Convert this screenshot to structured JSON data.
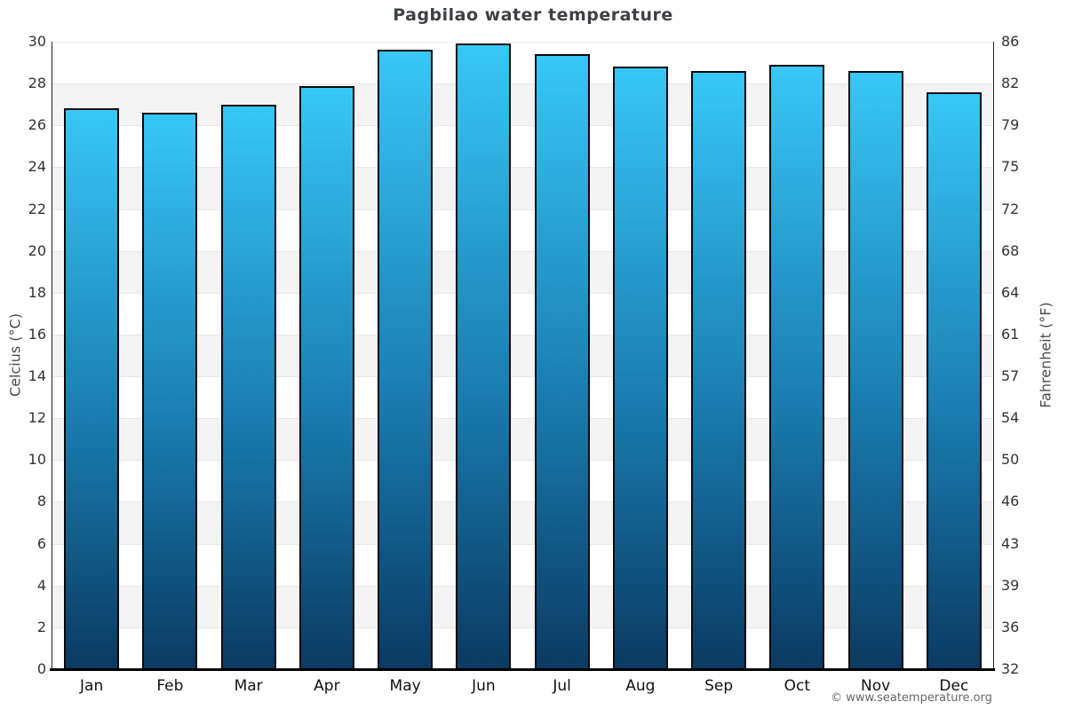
{
  "chart_data": {
    "type": "bar",
    "title": "Pagbilao water temperature",
    "categories": [
      "Jan",
      "Feb",
      "Mar",
      "Apr",
      "May",
      "Jun",
      "Jul",
      "Aug",
      "Sep",
      "Oct",
      "Nov",
      "Dec"
    ],
    "values": [
      26.8,
      26.6,
      27.0,
      27.9,
      29.6,
      29.9,
      29.4,
      28.8,
      28.6,
      28.9,
      28.6,
      27.6
    ],
    "unit": "°C",
    "ylabel_left": "Celcius (°C)",
    "ylabel_right": "Fahrenheit (°F)",
    "ylim": [
      0,
      30
    ],
    "celsius_ticks": [
      30,
      28,
      26,
      24,
      22,
      20,
      18,
      16,
      14,
      12,
      10,
      8,
      6,
      4,
      2,
      0
    ],
    "fahrenheit_ticks": [
      "86",
      "82",
      "79",
      "75",
      "72",
      "68",
      "64",
      "61",
      "57",
      "54",
      "50",
      "46",
      "43",
      "39",
      "36",
      "32"
    ],
    "grid": "alternating horizontal bands every 2°C",
    "legend": "none",
    "bar_color_top": "#38c7f6",
    "bar_color_bottom": "#0b3a62",
    "bar_border_color": "#0a0a0a",
    "band_gray_color": "#f3f3f3"
  },
  "footer": {
    "credit": "© www.seatemperature.org"
  }
}
